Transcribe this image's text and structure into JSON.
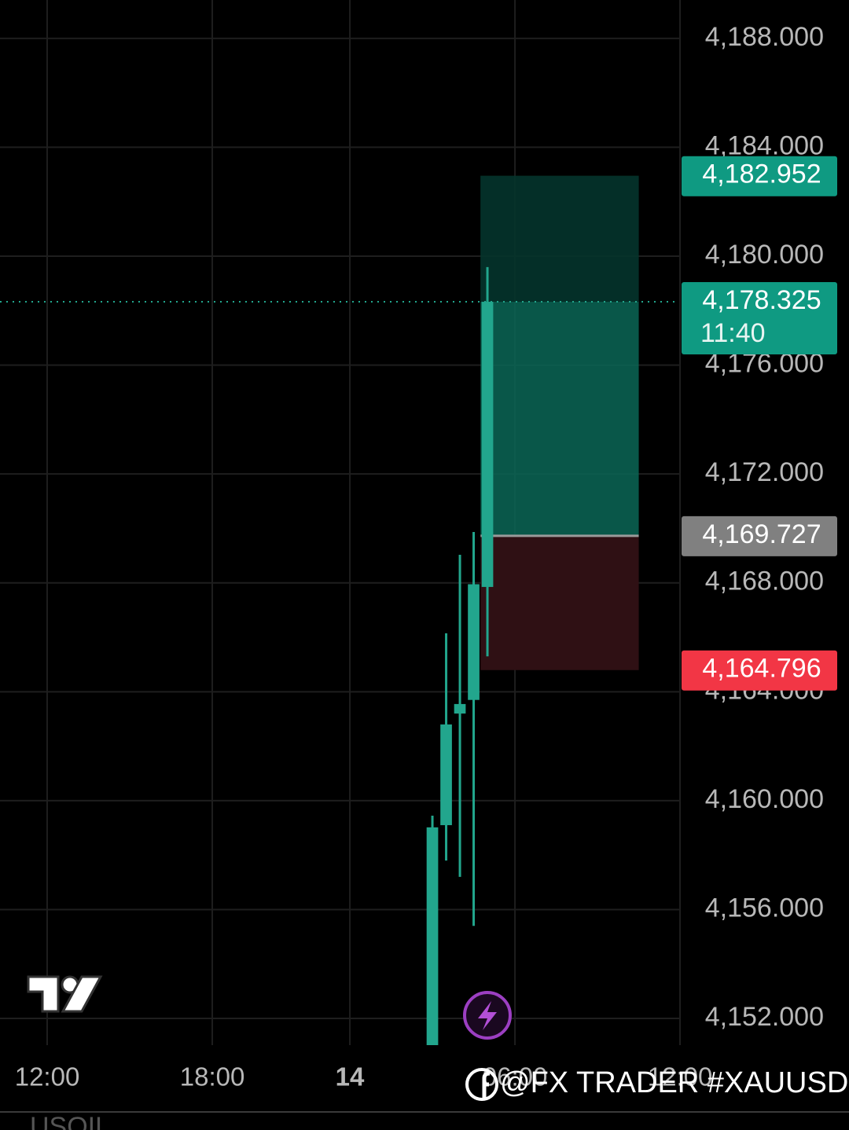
{
  "chart_data": {
    "type": "candlestick",
    "x": [
      0,
      1,
      2,
      3,
      4
    ],
    "open": [
      4150.5,
      4159.1,
      4163.2,
      4163.7,
      4167.85
    ],
    "high": [
      4159.45,
      4166.15,
      4169.03,
      4169.87,
      4179.6
    ],
    "low": [
      4150.2,
      4157.8,
      4157.2,
      4155.4,
      4165.3
    ],
    "close": [
      4159.02,
      4162.8,
      4163.55,
      4167.95,
      4178.325
    ],
    "color": "#22a68d",
    "xlim": [
      -31.43,
      17.94
    ],
    "ylim": [
      4151.02,
      4189.41
    ],
    "xticks": [
      {
        "value": -28,
        "label": "12:00"
      },
      {
        "value": -16,
        "label": "18:00"
      },
      {
        "value": -6,
        "label": "14"
      },
      {
        "value": 6,
        "label": "06:00"
      },
      {
        "value": 18,
        "label": "12:00"
      }
    ],
    "yticks": [
      {
        "value": 4152,
        "label": "4,152.000"
      },
      {
        "value": 4156,
        "label": "4,156.000"
      },
      {
        "value": 4160,
        "label": "4,160.000"
      },
      {
        "value": 4164,
        "label": "4,164.000"
      },
      {
        "value": 4168,
        "label": "4,168.000"
      },
      {
        "value": 4172,
        "label": "4,172.000"
      },
      {
        "value": 4176,
        "label": "4,176.000"
      },
      {
        "value": 4180,
        "label": "4,180.000"
      },
      {
        "value": 4184,
        "label": "4,184.000"
      },
      {
        "value": 4188,
        "label": "4,188.000"
      }
    ],
    "grid": true,
    "position": {
      "x_start": 4,
      "x_end": 15,
      "take_profit": {
        "value": 4182.952,
        "label": "4,182.952"
      },
      "entry": {
        "value": 4169.727,
        "label": "4,169.727"
      },
      "stop_loss": {
        "value": 4164.796,
        "label": "4,164.796"
      }
    },
    "last_price": {
      "value": 4178.325,
      "label": "4,178.325"
    },
    "countdown": "11:40",
    "watermark": "@FX TRADER #XAUUSD",
    "footer_symbol": "USOIL"
  }
}
